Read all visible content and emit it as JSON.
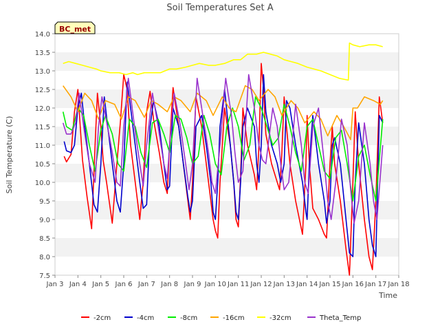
{
  "chart_data": {
    "type": "line",
    "title": "Soil Temperatures Set A",
    "xlabel": "Time",
    "ylabel": "Soil Temperature (C)",
    "site_badge": "BC_met",
    "x_ticks": [
      "Jan 3",
      "Jan 4",
      "Jan 5",
      "Jan 6",
      "Jan 7",
      "Jan 8",
      "Jan 9",
      "Jan 10",
      "Jan 11",
      "Jan 12",
      "Jan 13",
      "Jan 14",
      "Jan 15",
      "Jan 16",
      "Jan 17",
      "Jan 18"
    ],
    "y_ticks": [
      "7.5",
      "8.0",
      "8.5",
      "9.0",
      "9.5",
      "10.0",
      "10.5",
      "11.0",
      "11.5",
      "12.0",
      "12.5",
      "13.0",
      "13.5",
      "14.0"
    ],
    "xlim": [
      0,
      15
    ],
    "ylim": [
      7.5,
      14.0
    ],
    "grid": "horizontal bands",
    "legend_position": "bottom",
    "series": [
      {
        "name": "-2cm",
        "color": "#ff0000",
        "x": [
          0.4,
          0.5,
          0.7,
          0.85,
          1.0,
          1.1,
          1.2,
          1.4,
          1.6,
          1.75,
          1.85,
          2.0,
          2.1,
          2.25,
          2.5,
          2.7,
          2.85,
          3.0,
          3.15,
          3.3,
          3.5,
          3.7,
          3.85,
          4.0,
          4.15,
          4.3,
          4.55,
          4.75,
          4.9,
          5.0,
          5.15,
          5.4,
          5.6,
          5.8,
          5.9,
          6.0,
          6.15,
          6.4,
          6.6,
          6.8,
          6.9,
          7.0,
          7.1,
          7.2,
          7.4,
          7.65,
          7.8,
          7.9,
          8.0,
          8.1,
          8.2,
          8.4,
          8.7,
          8.8,
          8.9,
          9.0,
          9.1,
          9.2,
          9.45,
          9.7,
          9.8,
          9.9,
          10.0,
          10.1,
          10.25,
          10.5,
          10.8,
          10.95,
          11.0,
          11.1,
          11.25,
          11.5,
          11.75,
          11.85,
          12.0,
          12.1,
          12.2,
          12.45,
          12.7,
          12.85,
          13.0,
          13.1,
          13.25,
          13.5,
          13.7,
          13.85,
          14.0,
          14.15,
          14.3
        ],
        "values": [
          10.7,
          10.55,
          10.75,
          11.9,
          12.5,
          11.5,
          10.6,
          9.6,
          8.75,
          11.0,
          12.4,
          11.5,
          10.6,
          10.0,
          8.9,
          10.5,
          11.6,
          12.9,
          12.5,
          11.0,
          10.0,
          9.0,
          10.0,
          11.9,
          12.45,
          11.7,
          10.8,
          10.0,
          9.7,
          11.0,
          12.55,
          11.5,
          10.5,
          9.5,
          9.0,
          10.0,
          12.3,
          11.5,
          10.5,
          9.5,
          9.0,
          8.7,
          8.5,
          10.0,
          12.0,
          11.0,
          10.0,
          9.0,
          8.8,
          10.2,
          12.0,
          11.0,
          10.2,
          9.8,
          11.0,
          13.2,
          12.5,
          11.3,
          10.5,
          10.0,
          9.8,
          10.8,
          12.3,
          11.5,
          10.5,
          9.5,
          8.6,
          10.5,
          11.8,
          10.5,
          9.3,
          9.0,
          8.6,
          8.5,
          10.5,
          11.5,
          10.5,
          9.5,
          8.2,
          7.5,
          10.0,
          11.9,
          10.5,
          9.0,
          8.0,
          7.65,
          9.5,
          12.3,
          11.6
        ]
      },
      {
        "name": "-4cm",
        "color": "#0000cc",
        "x": [
          0.4,
          0.5,
          0.7,
          0.85,
          1.0,
          1.15,
          1.3,
          1.5,
          1.7,
          1.85,
          2.0,
          2.15,
          2.3,
          2.5,
          2.7,
          2.85,
          3.0,
          3.15,
          3.3,
          3.5,
          3.7,
          3.85,
          4.0,
          4.15,
          4.3,
          4.55,
          4.75,
          4.9,
          5.0,
          5.15,
          5.4,
          5.6,
          5.8,
          5.9,
          6.0,
          6.15,
          6.4,
          6.6,
          6.8,
          6.9,
          7.0,
          7.1,
          7.2,
          7.4,
          7.65,
          7.8,
          7.9,
          8.0,
          8.1,
          8.2,
          8.4,
          8.7,
          8.8,
          8.9,
          9.0,
          9.1,
          9.2,
          9.45,
          9.7,
          9.85,
          10.0,
          10.1,
          10.25,
          10.5,
          10.8,
          10.95,
          11.0,
          11.1,
          11.25,
          11.5,
          11.75,
          11.85,
          12.0,
          12.1,
          12.2,
          12.45,
          12.7,
          12.85,
          13.0,
          13.1,
          13.25,
          13.5,
          13.7,
          13.85,
          14.0,
          14.15,
          14.3
        ],
        "values": [
          11.1,
          10.85,
          10.8,
          11.0,
          12.0,
          12.4,
          11.5,
          10.5,
          9.4,
          9.2,
          10.5,
          12.3,
          11.5,
          10.5,
          9.5,
          9.2,
          10.5,
          12.7,
          12.0,
          11.0,
          10.0,
          9.3,
          9.4,
          11.5,
          12.2,
          11.5,
          10.5,
          9.8,
          9.9,
          12.0,
          11.5,
          10.5,
          9.6,
          9.2,
          9.5,
          11.5,
          11.8,
          11.0,
          10.0,
          9.2,
          9.0,
          10.0,
          11.5,
          12.5,
          11.0,
          10.0,
          9.2,
          9.0,
          10.0,
          11.5,
          12.0,
          11.5,
          10.5,
          10.0,
          11.0,
          12.9,
          11.9,
          11.0,
          10.5,
          10.0,
          10.5,
          12.2,
          12.0,
          11.0,
          10.0,
          9.2,
          9.0,
          10.5,
          11.8,
          10.5,
          9.5,
          8.9,
          9.5,
          11.0,
          11.2,
          10.5,
          9.0,
          8.1,
          8.0,
          10.0,
          11.6,
          10.5,
          9.0,
          8.3,
          8.0,
          11.8,
          11.6
        ]
      },
      {
        "name": "-8cm",
        "color": "#00ee00",
        "x": [
          0.35,
          0.5,
          0.75,
          1.0,
          1.25,
          1.5,
          1.75,
          2.0,
          2.2,
          2.5,
          2.75,
          3.0,
          3.25,
          3.5,
          3.75,
          4.0,
          4.25,
          4.5,
          4.75,
          5.0,
          5.25,
          5.5,
          5.75,
          6.0,
          6.25,
          6.5,
          6.75,
          7.0,
          7.25,
          7.5,
          7.75,
          8.0,
          8.25,
          8.5,
          8.75,
          9.0,
          9.25,
          9.5,
          9.75,
          10.0,
          10.25,
          10.5,
          10.75,
          11.0,
          11.25,
          11.5,
          11.75,
          12.0,
          12.25,
          12.5,
          12.75,
          13.0,
          13.25,
          13.5,
          13.75,
          14.0,
          14.3
        ],
        "values": [
          11.9,
          11.5,
          11.4,
          12.0,
          11.8,
          11.0,
          10.3,
          11.4,
          11.8,
          11.3,
          10.5,
          10.3,
          11.7,
          11.5,
          10.8,
          10.4,
          11.6,
          11.7,
          11.3,
          10.8,
          11.8,
          11.7,
          11.2,
          10.5,
          10.7,
          11.8,
          11.3,
          10.5,
          10.2,
          11.5,
          12.0,
          11.5,
          10.6,
          11.0,
          12.3,
          12.0,
          11.5,
          11.0,
          11.2,
          12.1,
          11.5,
          10.8,
          10.3,
          11.5,
          11.7,
          11.0,
          10.3,
          10.1,
          11.2,
          11.4,
          10.5,
          9.5,
          10.7,
          11.0,
          10.2,
          9.5,
          11.7
        ]
      },
      {
        "name": "-16cm",
        "color": "#ffa500",
        "x": [
          0.35,
          0.7,
          1.0,
          1.3,
          1.6,
          1.9,
          2.2,
          2.6,
          2.9,
          3.2,
          3.5,
          3.9,
          4.2,
          4.5,
          4.9,
          5.2,
          5.5,
          5.9,
          6.2,
          6.6,
          6.9,
          7.3,
          7.6,
          7.9,
          8.3,
          8.6,
          8.9,
          9.3,
          9.6,
          9.9,
          10.3,
          10.6,
          10.9,
          11.3,
          11.6,
          11.9,
          12.3,
          12.6,
          12.9,
          13.0,
          13.2,
          13.5,
          13.9,
          14.2,
          14.3
        ],
        "values": [
          12.6,
          12.3,
          11.9,
          12.4,
          12.2,
          11.7,
          12.2,
          12.1,
          11.7,
          12.3,
          12.2,
          11.75,
          12.2,
          12.1,
          11.9,
          12.3,
          12.2,
          11.9,
          12.4,
          12.2,
          11.8,
          12.3,
          12.0,
          11.9,
          12.6,
          12.5,
          12.2,
          12.5,
          12.3,
          11.8,
          12.2,
          12.0,
          11.6,
          11.9,
          11.7,
          11.25,
          11.8,
          11.5,
          11.15,
          12.0,
          12.0,
          12.3,
          12.2,
          12.1,
          12.2
        ],
        "y_max_note": "",
        "dummy": ""
      },
      {
        "name": "-32cm",
        "color": "#ffff00",
        "x": [
          0.35,
          0.6,
          0.9,
          1.2,
          1.5,
          1.8,
          2.0,
          2.4,
          2.8,
          3.1,
          3.4,
          3.6,
          3.9,
          4.2,
          4.6,
          5.0,
          5.3,
          5.7,
          6.0,
          6.3,
          6.7,
          7.0,
          7.4,
          7.8,
          8.1,
          8.4,
          8.8,
          9.1,
          9.4,
          9.7,
          10.0,
          10.3,
          10.6,
          11.0,
          11.3,
          11.6,
          12.0,
          12.4,
          12.8,
          12.85,
          13.0,
          13.3,
          13.7,
          14.0,
          14.3
        ],
        "values": [
          13.2,
          13.25,
          13.2,
          13.15,
          13.1,
          13.05,
          13.0,
          12.95,
          12.95,
          12.9,
          12.95,
          12.9,
          12.95,
          12.95,
          12.95,
          13.05,
          13.05,
          13.1,
          13.15,
          13.2,
          13.15,
          13.15,
          13.2,
          13.3,
          13.3,
          13.45,
          13.45,
          13.5,
          13.45,
          13.4,
          13.3,
          13.25,
          13.2,
          13.1,
          13.05,
          13.0,
          12.9,
          12.8,
          12.75,
          13.75,
          13.7,
          13.65,
          13.7,
          13.7,
          13.65
        ]
      },
      {
        "name": "Theta_Temp",
        "color": "#9932cc",
        "x": [
          0.35,
          0.5,
          0.7,
          0.9,
          1.05,
          1.25,
          1.5,
          1.75,
          1.9,
          2.05,
          2.2,
          2.5,
          2.7,
          2.85,
          3.0,
          3.2,
          3.45,
          3.7,
          3.85,
          4.0,
          4.25,
          4.5,
          4.75,
          4.9,
          5.0,
          5.2,
          5.45,
          5.7,
          5.85,
          6.0,
          6.2,
          6.45,
          6.7,
          6.85,
          7.0,
          7.2,
          7.45,
          7.7,
          7.85,
          8.0,
          8.2,
          8.45,
          8.7,
          8.9,
          9.05,
          9.2,
          9.5,
          9.7,
          9.85,
          10.0,
          10.2,
          10.5,
          10.75,
          10.9,
          11.05,
          11.25,
          11.5,
          11.75,
          11.9,
          12.05,
          12.25,
          12.5,
          12.75,
          12.9,
          13.05,
          13.25,
          13.5,
          13.75,
          13.9,
          14.05,
          14.3
        ],
        "values": [
          11.6,
          11.3,
          11.3,
          11.6,
          12.4,
          11.5,
          10.5,
          10.0,
          11.5,
          12.3,
          11.8,
          10.8,
          10.0,
          9.9,
          11.5,
          12.8,
          11.6,
          10.5,
          9.9,
          11.0,
          12.4,
          11.5,
          10.5,
          10.1,
          11.0,
          12.4,
          11.6,
          10.5,
          9.8,
          10.5,
          12.8,
          11.8,
          10.8,
          10.0,
          9.7,
          11.0,
          12.8,
          11.8,
          10.8,
          10.0,
          10.3,
          12.9,
          12.0,
          11.0,
          10.6,
          10.5,
          12.0,
          11.5,
          10.5,
          9.8,
          10.0,
          12.1,
          11.0,
          10.0,
          9.7,
          11.5,
          12.0,
          10.5,
          9.5,
          9.0,
          10.0,
          11.7,
          11.0,
          9.8,
          8.9,
          9.5,
          11.6,
          10.5,
          9.5,
          9.0,
          11.0
        ],
        "extra": ""
      }
    ]
  }
}
